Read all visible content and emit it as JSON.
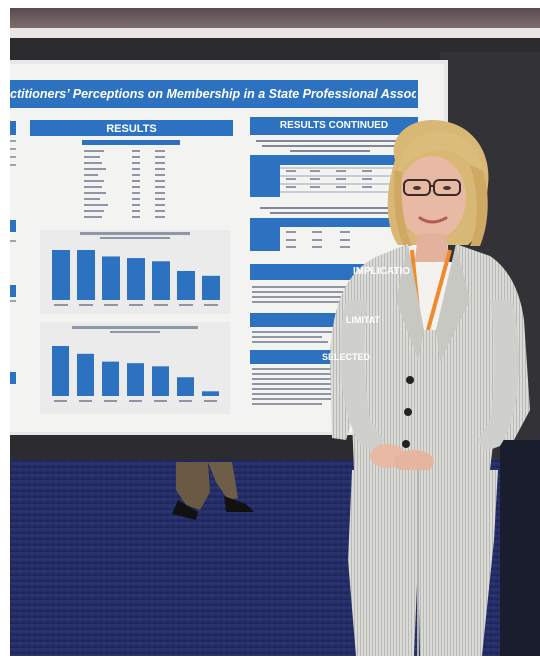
{
  "poster": {
    "title": "ctitioners’ Perceptions on Membership in a State Professional Association",
    "sections": {
      "results": "RESULTS",
      "results_continued": "RESULTS CONTINUED",
      "implications": "IMPLICATIO",
      "limitations": "LIMITAT",
      "selected": "SELECTED"
    },
    "chart_top_values": [
      31,
      31,
      27,
      26,
      24,
      18,
      15
    ],
    "chart_bottom_values": [
      32,
      27,
      22,
      21,
      19,
      12,
      3
    ]
  },
  "colors": {
    "poster_blue": "#2d72c0",
    "poster_bg": "#f3f4f2",
    "carpet": "#27306a",
    "wall": "#2b2b30",
    "jacket": "#d6d6d2",
    "hair": "#d9b774"
  }
}
